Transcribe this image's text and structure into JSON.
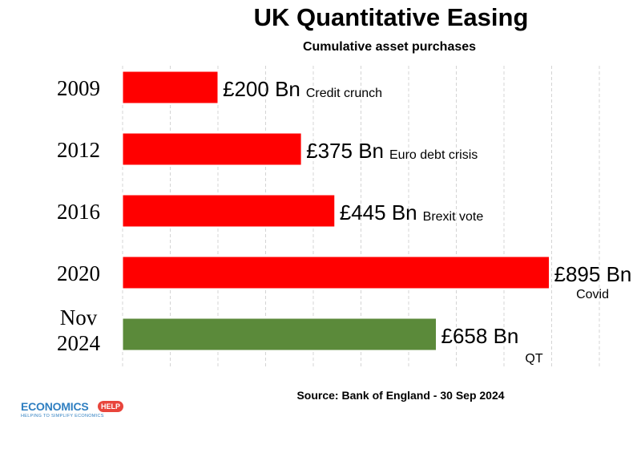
{
  "chart_data": {
    "type": "bar",
    "orientation": "horizontal",
    "title": "UK Quantitative Easing",
    "subtitle": "Cumulative asset purchases",
    "categories": [
      "2009",
      "2012",
      "2016",
      "2020",
      "Nov 2024"
    ],
    "values": [
      200,
      375,
      445,
      895,
      658
    ],
    "value_labels": [
      "£200 Bn",
      "£375 Bn",
      "£445 Bn",
      "£895 Bn",
      "£658 Bn"
    ],
    "annotations": [
      "Credit crunch",
      "Euro debt crisis",
      "Brexit vote",
      "Covid",
      "QT"
    ],
    "colors": [
      "#ff0000",
      "#ff0000",
      "#ff0000",
      "#ff0000",
      "#5b8a3a"
    ],
    "unit": "Bn",
    "xlim": [
      0,
      1000
    ],
    "grid": "vertical-dashed",
    "source": "Source: Bank of England - 30 Sep 2024"
  },
  "logo": {
    "text": "ECONOMICS",
    "badge": "HELP",
    "tagline": "HELPING TO SIMPLIFY ECONOMICS"
  }
}
